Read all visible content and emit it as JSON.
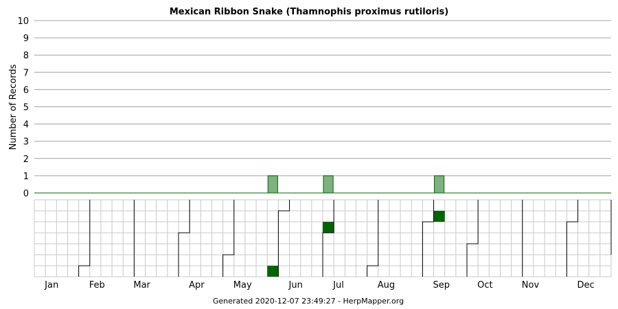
{
  "chart_data": {
    "type": "bar",
    "title": "Mexican Ribbon Snake (Thamnophis proximus rutiloris)",
    "ylabel": "Number of Records",
    "xlabel": "",
    "ylim": [
      0,
      10
    ],
    "yticks": [
      "0",
      "1",
      "2",
      "3",
      "4",
      "5",
      "6",
      "7",
      "8",
      "9",
      "10"
    ],
    "months": [
      "Jan",
      "Feb",
      "Mar",
      "Apr",
      "May",
      "Jun",
      "Jul",
      "Aug",
      "Sep",
      "Oct",
      "Nov",
      "Dec"
    ],
    "weeks_per_year": 52,
    "series": [
      {
        "records": [
          {
            "week": 21,
            "value": 1
          },
          {
            "week": 26,
            "value": 1
          },
          {
            "week": 36,
            "value": 1
          }
        ]
      }
    ],
    "calendar": {
      "rows": 7,
      "records": [
        {
          "week": 21,
          "day": 6
        },
        {
          "week": 26,
          "day": 2
        },
        {
          "week": 36,
          "day": 1
        }
      ]
    },
    "footer": "Generated 2020-12-07 23:49:27 - HerpMapper.org",
    "colors": {
      "bar_fill": "#7fb07f",
      "bar_stroke": "#006400",
      "cal_fill": "#006400",
      "grid": "#a0a0a0",
      "cal_grid": "#c8c8c8",
      "baseline": "#006400"
    }
  }
}
